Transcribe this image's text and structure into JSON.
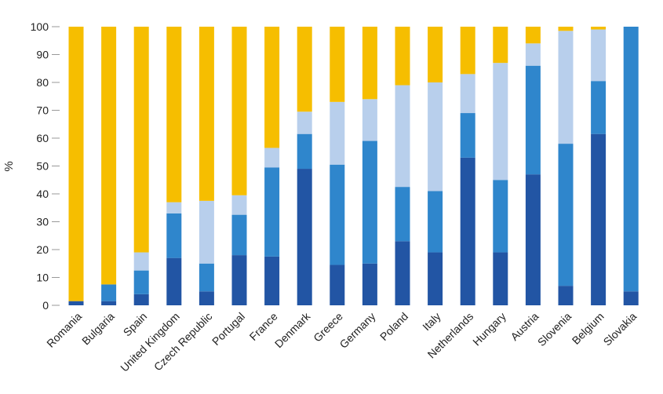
{
  "chart_data": {
    "type": "bar",
    "stacked": true,
    "ylabel": "%",
    "xlabel": "",
    "ylim": [
      0,
      100
    ],
    "yticks": [
      0,
      10,
      20,
      30,
      40,
      50,
      60,
      70,
      80,
      90,
      100
    ],
    "grid": false,
    "legend": "none",
    "categories": [
      "Romania",
      "Bulgaria",
      "Spain",
      "United Kingdom",
      "Czech Republic",
      "Portugal",
      "France",
      "Denmark",
      "Greece",
      "Germany",
      "Poland",
      "Italy",
      "Netherlands",
      "Hungary",
      "Austria",
      "Slovenia",
      "Belgium",
      "Slovakia"
    ],
    "series": [
      {
        "color": "#2255a4",
        "values": [
          1.5,
          1.5,
          4,
          17,
          5,
          18,
          17.5,
          49,
          14.5,
          15,
          23,
          19,
          53,
          19,
          47,
          7,
          61.5,
          5
        ]
      },
      {
        "color": "#2f86cc",
        "values": [
          0,
          6,
          8.5,
          16,
          10,
          14.5,
          32,
          12.5,
          36,
          44,
          19.5,
          22,
          16,
          26,
          39,
          51,
          19,
          95
        ]
      },
      {
        "color": "#b8cfec",
        "values": [
          0,
          0,
          6.5,
          4,
          22.5,
          7,
          7,
          8,
          22.5,
          15,
          36.5,
          39,
          14,
          42,
          8,
          40.5,
          18.5,
          0
        ]
      },
      {
        "color": "#f6be00",
        "values": [
          98.5,
          92.5,
          81,
          63,
          62.5,
          60.5,
          43.5,
          30.5,
          27,
          26,
          21,
          20,
          17,
          13,
          6,
          1.5,
          1,
          0
        ]
      }
    ]
  }
}
